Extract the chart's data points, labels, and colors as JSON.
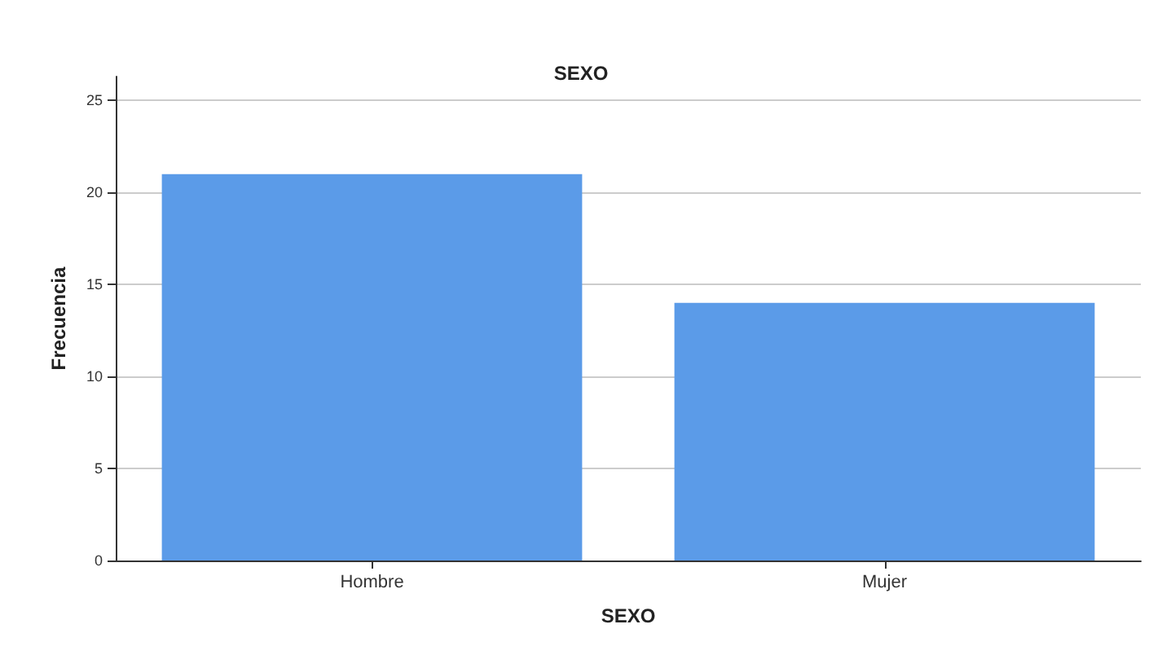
{
  "chart_data": {
    "type": "bar",
    "title": "SEXO",
    "xlabel": "SEXO",
    "ylabel": "Frecuencia",
    "categories": [
      "Hombre",
      "Mujer"
    ],
    "values": [
      21,
      14
    ],
    "color": "#5b9be8",
    "ylim": [
      0,
      26.3
    ],
    "yticks": [
      0,
      5,
      10,
      15,
      20,
      25
    ],
    "grid": "y"
  }
}
